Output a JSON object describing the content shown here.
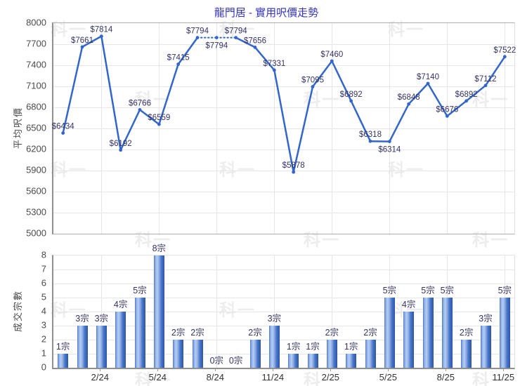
{
  "title": "龍門居 - 實用呎價走勢",
  "watermark_text": "科一",
  "colors": {
    "title": "#3333bb",
    "line": "#3366cc",
    "point_label": "#333366",
    "bar_label": "#333366",
    "axis_text": "#4a4a4a",
    "grid": "#e6e6e6",
    "axis_line": "#8f8f8f",
    "bar_main": "#4a76c8",
    "bar_light": "#b7cdf3",
    "bar_dark": "#2a55a8"
  },
  "x_axis": {
    "tick_indices": [
      2,
      5,
      8,
      11,
      14,
      17,
      20,
      23
    ],
    "tick_labels": [
      "2/24",
      "5/24",
      "8/24",
      "11/24",
      "2/25",
      "5/25",
      "8/25",
      "11/25"
    ]
  },
  "chart_data": [
    {
      "type": "line",
      "title": "龍門居 - 實用呎價走勢",
      "ylabel": "平均呎價",
      "ylim": [
        5000,
        8000
      ],
      "grid": true,
      "yticks": [
        "8000",
        "7700",
        "7400",
        "7100",
        "6800",
        "6500",
        "6200",
        "5900",
        "5600",
        "5300",
        "5000"
      ],
      "values": [
        6434,
        7661,
        7814,
        6192,
        6766,
        6559,
        7415,
        7794,
        7794,
        7794,
        7656,
        7331,
        5878,
        7095,
        7460,
        6892,
        6318,
        6314,
        6848,
        7140,
        6676,
        6892,
        7112,
        7522
      ],
      "point_labels": [
        "$6434",
        "$7661",
        "$7814",
        "$6192",
        "$6766",
        "$6559",
        "$7415",
        "$7794",
        "$7794",
        "$7794",
        "$7656",
        "$7331",
        "$5878",
        "$7095",
        "$7460",
        "$6892",
        "$6318",
        "$6314",
        "$6848",
        "$7140",
        "$6676",
        "$6892",
        "$7112",
        "$7522"
      ],
      "labels_below": [
        8,
        17
      ],
      "dashed_segments_start_index": [
        7,
        8
      ]
    },
    {
      "type": "bar",
      "ylabel": "成交宗數",
      "ylim": [
        0,
        8
      ],
      "grid": true,
      "yticks": [
        "8",
        "7",
        "6",
        "5",
        "4",
        "3",
        "2",
        "1",
        "0"
      ],
      "values": [
        1,
        3,
        3,
        4,
        5,
        8,
        2,
        2,
        0,
        0,
        2,
        3,
        1,
        1,
        2,
        1,
        2,
        5,
        4,
        5,
        5,
        2,
        3,
        5
      ],
      "bar_labels": [
        "1宗",
        "3宗",
        "3宗",
        "4宗",
        "5宗",
        "8宗",
        "2宗",
        "2宗",
        "0宗",
        "0宗",
        "2宗",
        "3宗",
        "1宗",
        "1宗",
        "2宗",
        "1宗",
        "2宗",
        "5宗",
        "4宗",
        "5宗",
        "5宗",
        "2宗",
        "3宗",
        "5宗"
      ]
    }
  ]
}
